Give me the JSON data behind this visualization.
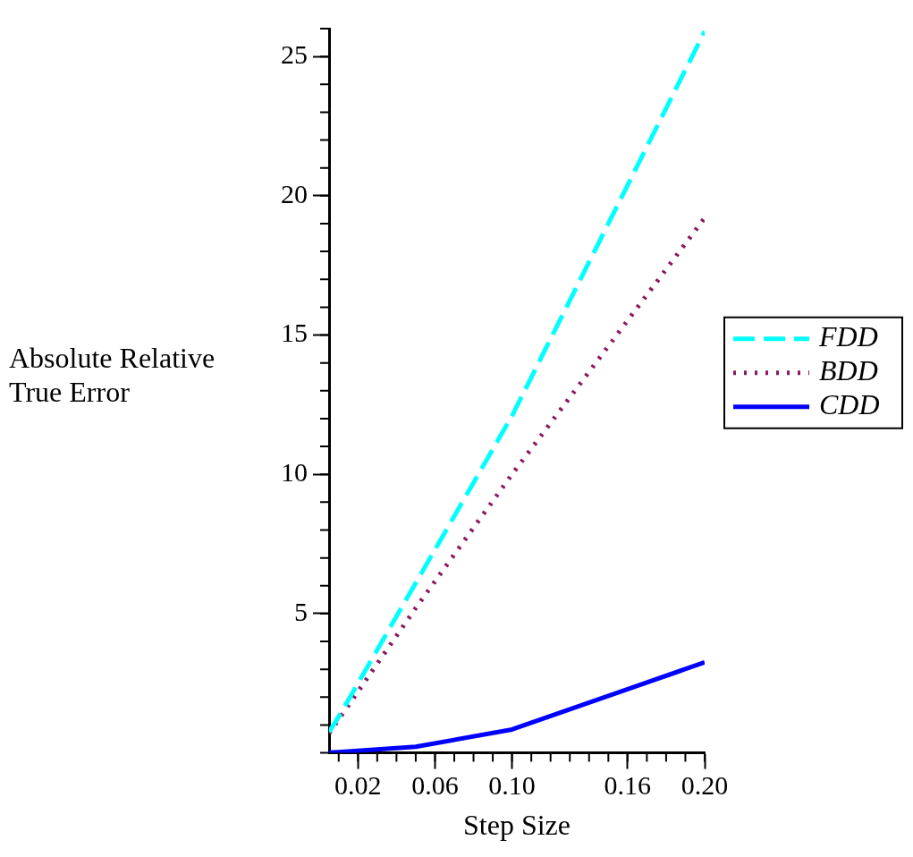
{
  "chart_data": {
    "type": "line",
    "xlabel": "Step Size",
    "ylabel": "Absolute Relative True Error",
    "series": [
      {
        "name": "FDD",
        "color": "#00ffff",
        "line_style": "dashed",
        "x": [
          0.005,
          0.01,
          0.05,
          0.1,
          0.2
        ],
        "values": [
          0.75,
          1.3,
          6.1,
          12.1,
          25.9
        ]
      },
      {
        "name": "BDD",
        "color": "#8b1a5e",
        "line_style": "dotted",
        "x": [
          0.005,
          0.01,
          0.05,
          0.1,
          0.2
        ],
        "values": [
          0.7,
          1.2,
          5.2,
          10.0,
          19.2
        ]
      },
      {
        "name": "CDD",
        "color": "#0000ff",
        "line_style": "solid",
        "x": [
          0.005,
          0.01,
          0.05,
          0.1,
          0.2
        ],
        "values": [
          0.01,
          0.03,
          0.22,
          0.84,
          3.25
        ]
      }
    ],
    "xlim": [
      0.005,
      0.2
    ],
    "xticks": [
      0.02,
      0.06,
      {
        "value": 0.1,
        "label": "0.10"
      },
      0.16,
      {
        "value": 0.2,
        "label": "0.20"
      }
    ],
    "ylim": [
      0,
      26
    ],
    "yticks": [
      5,
      10,
      15,
      20,
      25
    ],
    "grid": false,
    "legend": "right",
    "marker": "none"
  }
}
